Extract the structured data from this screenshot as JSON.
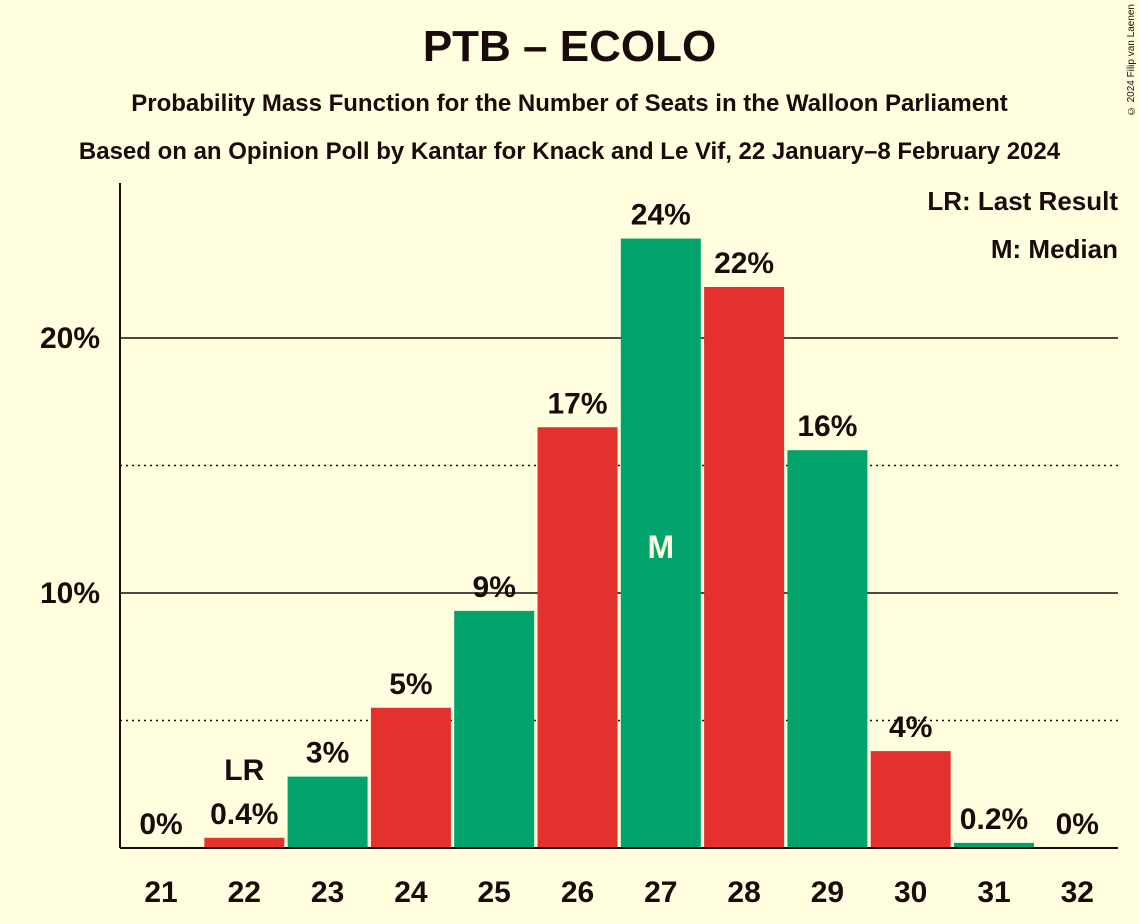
{
  "chart_data": {
    "type": "bar",
    "title": "PTB – ECOLO",
    "subtitle": "Probability Mass Function for the Number of Seats in the Walloon Parliament",
    "subtitle2": "Based on an Opinion Poll by Kantar for Knack and Le Vif, 22 January–8 February 2024",
    "copyright": "© 2024 Filip van Laenen",
    "categories": [
      "21",
      "22",
      "23",
      "24",
      "25",
      "26",
      "27",
      "28",
      "29",
      "30",
      "31",
      "32"
    ],
    "values": [
      0,
      0.4,
      2.8,
      5.5,
      9.3,
      16.5,
      23.9,
      22.0,
      15.6,
      3.8,
      0.2,
      0
    ],
    "value_labels": [
      "0%",
      "0.4%",
      "3%",
      "5%",
      "9%",
      "17%",
      "24%",
      "22%",
      "16%",
      "4%",
      "0.2%",
      "0%"
    ],
    "bar_colors": [
      "#00a36c",
      "#e5312d",
      "#00a36c",
      "#e5312d",
      "#00a36c",
      "#e5312d",
      "#00a36c",
      "#e5312d",
      "#00a36c",
      "#e5312d",
      "#00a36c",
      "#e5312d"
    ],
    "ylim": [
      0,
      26
    ],
    "yticks": [
      {
        "value": 10,
        "label": "10%"
      },
      {
        "value": 20,
        "label": "20%"
      }
    ],
    "dotted_gridlines": [
      5,
      15
    ],
    "last_result_category": "22",
    "last_result_marker": "LR",
    "median_category": "27",
    "median_marker": "M",
    "legend": [
      "LR: Last Result",
      "M: Median"
    ],
    "legend_position": "top-right",
    "xlabel": "",
    "ylabel": ""
  }
}
